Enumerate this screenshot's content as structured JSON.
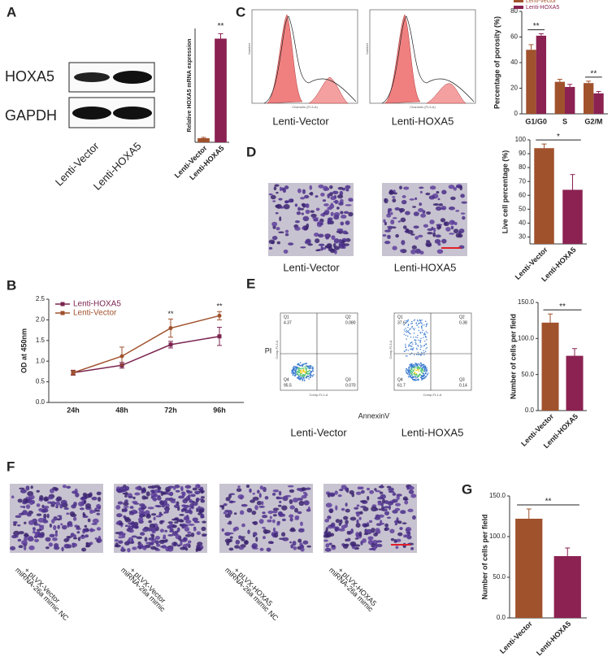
{
  "figure": {
    "panel_labels": [
      "A",
      "B",
      "C",
      "D",
      "E",
      "F",
      "G"
    ],
    "blot": {
      "rows": [
        "HOXA5",
        "GAPDH"
      ],
      "lanes": [
        "Lenti-Vector",
        "Lenti-HOXA5"
      ]
    },
    "histograms": {
      "captions": [
        "Lenti-Vector",
        "Lenti-HOXA5"
      ],
      "x_axis": "Channels (FL3-A)",
      "y_axis": "Number"
    },
    "invasion": {
      "captions": [
        "Lenti-Vector",
        "Lenti-HOXA5"
      ]
    },
    "apoptosis": {
      "captions": [
        "Lenti-Vector",
        "Lenti-HOXA5"
      ],
      "x_axis": "AnnexinV",
      "y_axis": "PI",
      "plot_x_axis": "Comp-FL1-A",
      "plot_y_axis": "Comp-FL3-A",
      "quadrants": [
        [
          "Q1",
          "4.37",
          "Q2",
          "0.080",
          "Q4",
          "95.5",
          "Q3",
          "0.070"
        ],
        [
          "Q1",
          "37.6",
          "Q2",
          "0.38",
          "Q4",
          "61.7",
          "Q3",
          "0.14"
        ]
      ]
    },
    "transwell": {
      "captions": [
        [
          "miRNA-26a mimic NC",
          "+ pLVX-Vector"
        ],
        [
          "miRNA-26a mimic",
          "+ pLVX-Vector"
        ],
        [
          "miRNA-26a mimic NC",
          "+ pLVX-HOXA5"
        ],
        [
          "miRNA-26a mimic",
          "+ pLVX-HOXA5"
        ]
      ]
    }
  },
  "chart_data": [
    {
      "type": "bar",
      "ylabel": "Relative HOXA5 mRNA expression",
      "categories": [
        "Lenti-Vector",
        "Lenti-HOXA5"
      ],
      "x_label_angle": -45,
      "series": [
        {
          "colors": [
            "#a0522d",
            "#8b2252"
          ],
          "values": [
            1,
            25.5
          ],
          "errors": [
            0.2,
            1.2
          ]
        }
      ],
      "ylim": [
        0,
        28
      ],
      "yticks": [],
      "annotations": [
        {
          "text": "**",
          "category": 1
        }
      ]
    },
    {
      "type": "line",
      "ylabel": "OD at 450nm",
      "categories": [
        "24h",
        "48h",
        "72h",
        "96h"
      ],
      "legend": "upper left",
      "series": [
        {
          "name": "Lenti-HOXA5",
          "color": "#7b2450",
          "marker": "square",
          "values": [
            0.72,
            0.9,
            1.4,
            1.6
          ],
          "errors": [
            0.06,
            0.07,
            0.08,
            0.22
          ]
        },
        {
          "name": "Lenti-Vector",
          "color": "#a0522d",
          "marker": "circle",
          "values": [
            0.72,
            1.12,
            1.8,
            2.1
          ],
          "errors": [
            0.05,
            0.22,
            0.22,
            0.1
          ]
        }
      ],
      "ylim": [
        0,
        2.5
      ],
      "yticks": [
        {
          "value": 0,
          "label": "0.0"
        },
        {
          "value": 0.5,
          "label": "0.5"
        },
        {
          "value": 1,
          "label": "1.0"
        },
        {
          "value": 1.5,
          "label": "1.5"
        },
        {
          "value": 2,
          "label": "2.0"
        },
        {
          "value": 2.5,
          "label": "2.5"
        }
      ],
      "annotations": [
        {
          "text": "**",
          "category": 2
        },
        {
          "text": "**",
          "category": 3
        }
      ]
    },
    {
      "type": "bar",
      "ylabel": "Percentage of porosity (%)",
      "categories": [
        "G1/G0",
        "S",
        "G2/M"
      ],
      "x_label_angle": 0,
      "legend": "top",
      "series": [
        {
          "name": "Lenti-Vector",
          "color": "#a0522d",
          "values": [
            50,
            25,
            24
          ],
          "errors": [
            4,
            2,
            1.5
          ]
        },
        {
          "name": "Lenti-HOXA5",
          "color": "#8b2252",
          "values": [
            61,
            21,
            16
          ],
          "errors": [
            1.5,
            2,
            1.5
          ]
        }
      ],
      "ylim": [
        0,
        80
      ],
      "yticks": [
        0,
        20,
        40,
        60,
        80
      ],
      "annotations": [
        {
          "text": "**",
          "category": 0
        },
        {
          "text": "**",
          "category": 2
        }
      ]
    },
    {
      "type": "bar",
      "ylabel": "Live cell percentage (%)",
      "categories": [
        "Lenti-Vector",
        "Lenti-HOXA5"
      ],
      "x_label_angle": -45,
      "series": [
        {
          "colors": [
            "#a0522d",
            "#8b2252"
          ],
          "values": [
            94,
            64
          ],
          "errors": [
            3,
            11
          ]
        }
      ],
      "ylim": [
        25,
        100
      ],
      "yticks": [
        30,
        40,
        50,
        60,
        70,
        80,
        90,
        100
      ],
      "annotations": [
        {
          "text": "*"
        }
      ]
    },
    {
      "type": "bar",
      "ylabel": "Number of cells per field",
      "categories": [
        "Lenti-Vector",
        "Lenti-HOXA5"
      ],
      "x_label_angle": -45,
      "series": [
        {
          "colors": [
            "#a0522d",
            "#8b2252"
          ],
          "values": [
            122,
            76
          ],
          "errors": [
            12,
            10
          ]
        }
      ],
      "ylim": [
        0,
        150
      ],
      "yticks": [
        {
          "value": 0,
          "label": "0.0"
        },
        {
          "value": 50,
          "label": "50.0"
        },
        {
          "value": 100,
          "label": "100.0"
        },
        {
          "value": 150,
          "label": "150.0"
        }
      ],
      "annotations": [
        {
          "text": "**"
        }
      ]
    },
    {
      "type": "bar",
      "ylabel": "Number of cells per field",
      "categories": [
        "Lenti-Vector",
        "Lenti-HOXA5"
      ],
      "x_label_angle": -45,
      "series": [
        {
          "colors": [
            "#a0522d",
            "#8b2252"
          ],
          "values": [
            122,
            76
          ],
          "errors": [
            12,
            10
          ]
        }
      ],
      "ylim": [
        0,
        150
      ],
      "yticks": [
        {
          "value": 0,
          "label": "0.0"
        },
        {
          "value": 50,
          "label": "50.0"
        },
        {
          "value": 100,
          "label": "100.0"
        },
        {
          "value": 150,
          "label": "150.0"
        }
      ],
      "annotations": [
        {
          "text": "**"
        }
      ]
    }
  ]
}
